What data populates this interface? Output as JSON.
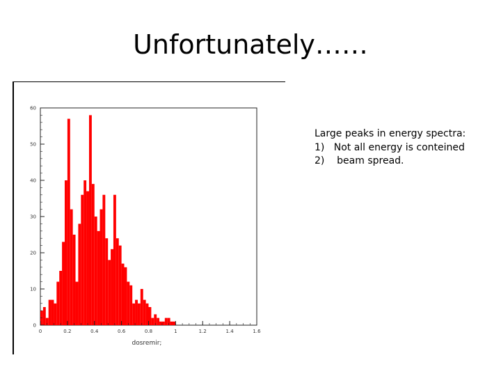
{
  "slide": {
    "title": "Unfortunately……",
    "notes": [
      "Large peaks in energy spectra:",
      "1)   Not all energy is conteined",
      "2)    beam spread."
    ]
  },
  "chart_data": {
    "type": "bar",
    "xlabel": "dosremir;",
    "ylabel": "",
    "xlim": [
      0,
      1.6
    ],
    "ylim": [
      0,
      60
    ],
    "x_ticks": [
      "0",
      "0.2",
      "0.4",
      "0.6",
      "0.8",
      "1",
      "1.2",
      "1.4",
      "1.6"
    ],
    "y_ticks": [
      "0",
      "10",
      "20",
      "30",
      "40",
      "50",
      "60"
    ],
    "bin_width": 0.02,
    "values": [
      4,
      5,
      2,
      7,
      7,
      6,
      12,
      15,
      23,
      40,
      57,
      32,
      25,
      12,
      28,
      36,
      40,
      37,
      58,
      39,
      30,
      26,
      32,
      36,
      24,
      18,
      21,
      36,
      24,
      22,
      17,
      16,
      12,
      11,
      6,
      7,
      6,
      10,
      7,
      6,
      5,
      2,
      3,
      2,
      1,
      1,
      2,
      2,
      1,
      1,
      0,
      0,
      0,
      0,
      0,
      0,
      0,
      0,
      0,
      0,
      0,
      0,
      0,
      0,
      0,
      0,
      0,
      0,
      0,
      0
    ],
    "bar_color": "#ff0000",
    "grid": false
  }
}
